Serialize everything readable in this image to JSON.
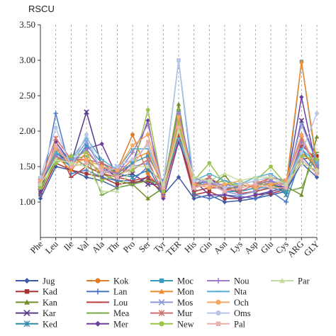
{
  "chart_data": {
    "type": "line",
    "ylabel": "RSCU",
    "xlabel": "",
    "title": "",
    "ylim": [
      0.5,
      3.5
    ],
    "yticks": [
      "1.00",
      "1.50",
      "2.00",
      "2.50",
      "3.00",
      "3.50"
    ],
    "ytick_values": [
      1.0,
      1.5,
      2.0,
      2.5,
      3.0,
      3.5
    ],
    "grid": "vertical dashed",
    "legend_position": "bottom",
    "categories": [
      "Phe",
      "Leu",
      "Ile",
      "Val",
      "Ala",
      "Thr",
      "Pro",
      "Ser",
      "Tyr",
      "TER",
      "His",
      "Gln",
      "Asn",
      "Lys",
      "Asp",
      "Glu",
      "Cys",
      "ARG",
      "GLY"
    ],
    "series": [
      {
        "name": "Jug",
        "color": "#3c5aa6",
        "marker": "diamond",
        "values": [
          1.05,
          1.5,
          1.45,
          1.35,
          1.3,
          1.2,
          1.25,
          1.35,
          1.1,
          1.35,
          1.05,
          1.1,
          1.0,
          1.02,
          1.05,
          1.1,
          1.15,
          1.55,
          1.35
        ]
      },
      {
        "name": "Kad",
        "color": "#a83232",
        "marker": "square",
        "values": [
          1.1,
          1.55,
          1.45,
          1.4,
          1.35,
          1.25,
          1.28,
          1.3,
          1.15,
          1.9,
          1.1,
          1.15,
          1.05,
          1.05,
          1.1,
          1.12,
          1.18,
          1.6,
          1.65
        ]
      },
      {
        "name": "Kan",
        "color": "#6f8f2a",
        "marker": "triangle",
        "values": [
          1.15,
          1.6,
          1.65,
          1.5,
          1.4,
          1.3,
          1.25,
          1.05,
          1.2,
          2.38,
          1.15,
          1.2,
          1.38,
          1.1,
          1.15,
          1.2,
          1.22,
          1.1,
          1.92
        ]
      },
      {
        "name": "Kar",
        "color": "#5b3a8a",
        "marker": "x",
        "values": [
          1.2,
          1.7,
          1.55,
          2.27,
          1.5,
          1.35,
          1.4,
          1.25,
          1.25,
          2.05,
          1.2,
          1.35,
          1.15,
          1.15,
          1.2,
          1.25,
          1.2,
          2.15,
          1.55
        ]
      },
      {
        "name": "Ked",
        "color": "#2f8aa8",
        "marker": "star",
        "values": [
          1.25,
          1.65,
          1.5,
          1.55,
          1.45,
          1.4,
          1.35,
          1.45,
          1.3,
          2.0,
          1.25,
          1.3,
          1.2,
          1.2,
          1.25,
          1.3,
          1.1,
          1.75,
          1.45
        ]
      },
      {
        "name": "Kok",
        "color": "#e07b28",
        "marker": "circle",
        "values": [
          1.3,
          1.75,
          1.6,
          1.6,
          1.4,
          1.45,
          1.95,
          1.4,
          1.15,
          2.15,
          1.2,
          1.25,
          1.15,
          1.25,
          1.2,
          1.35,
          1.25,
          1.7,
          1.5
        ]
      },
      {
        "name": "Lan",
        "color": "#4a78c8",
        "marker": "plus",
        "values": [
          1.1,
          2.25,
          1.4,
          1.45,
          1.35,
          1.3,
          1.3,
          1.5,
          1.1,
          2.1,
          1.1,
          1.05,
          1.1,
          1.08,
          1.05,
          1.15,
          1.0,
          1.65,
          1.4
        ]
      },
      {
        "name": "Lou",
        "color": "#b84040",
        "marker": "dash",
        "values": [
          1.2,
          1.8,
          1.35,
          1.5,
          1.4,
          1.35,
          1.3,
          1.35,
          1.2,
          1.95,
          1.15,
          1.2,
          1.2,
          1.12,
          1.15,
          1.2,
          1.2,
          1.8,
          1.6
        ]
      },
      {
        "name": "Mea",
        "color": "#7aa84a",
        "marker": "dash",
        "values": [
          1.25,
          1.6,
          1.6,
          1.65,
          1.1,
          1.2,
          1.25,
          1.3,
          1.25,
          2.3,
          1.25,
          1.25,
          1.3,
          1.2,
          1.25,
          1.25,
          1.15,
          1.2,
          1.7
        ]
      },
      {
        "name": "Mer",
        "color": "#6a3f9e",
        "marker": "diamond",
        "values": [
          1.15,
          1.85,
          1.55,
          1.75,
          1.82,
          1.35,
          1.55,
          2.15,
          1.05,
          1.85,
          1.3,
          1.1,
          1.1,
          1.05,
          1.1,
          1.15,
          1.2,
          2.48,
          1.45
        ]
      },
      {
        "name": "Moc",
        "color": "#3a9ac0",
        "marker": "square",
        "values": [
          1.3,
          1.7,
          1.5,
          1.8,
          1.55,
          1.4,
          1.55,
          1.65,
          1.25,
          3.0,
          1.2,
          1.25,
          1.15,
          1.15,
          1.2,
          1.2,
          1.15,
          2.98,
          1.5
        ]
      },
      {
        "name": "Mon",
        "color": "#f08c30",
        "marker": "triangle",
        "values": [
          1.35,
          1.65,
          1.45,
          1.7,
          1.5,
          1.4,
          1.6,
          1.7,
          1.2,
          2.2,
          1.25,
          1.25,
          1.2,
          1.25,
          1.3,
          1.25,
          1.25,
          2.98,
          1.55
        ]
      },
      {
        "name": "Mos",
        "color": "#8a9ad8",
        "marker": "x",
        "values": [
          1.25,
          1.8,
          1.55,
          1.85,
          1.45,
          1.5,
          1.5,
          1.55,
          1.15,
          2.25,
          1.2,
          1.3,
          1.15,
          1.1,
          1.15,
          1.3,
          1.25,
          2.1,
          1.55
        ]
      },
      {
        "name": "Mur",
        "color": "#d07070",
        "marker": "star",
        "values": [
          1.3,
          1.9,
          1.6,
          1.6,
          1.55,
          1.45,
          1.45,
          1.6,
          1.1,
          2.05,
          1.25,
          1.35,
          1.2,
          1.15,
          1.25,
          1.35,
          1.3,
          1.9,
          1.45
        ]
      },
      {
        "name": "New",
        "color": "#9ac44a",
        "marker": "circle",
        "values": [
          1.2,
          1.55,
          1.65,
          1.7,
          1.3,
          1.4,
          1.45,
          2.3,
          1.15,
          2.1,
          1.3,
          1.55,
          1.25,
          1.25,
          1.3,
          1.5,
          1.25,
          1.65,
          1.6
        ]
      },
      {
        "name": "Nou",
        "color": "#a07cc8",
        "marker": "plus",
        "values": [
          1.3,
          1.65,
          1.55,
          1.75,
          1.45,
          1.4,
          1.7,
          2.1,
          1.2,
          2.25,
          1.35,
          1.25,
          1.25,
          1.2,
          1.25,
          1.3,
          1.2,
          1.85,
          1.5
        ]
      },
      {
        "name": "Nta",
        "color": "#5ab0d0",
        "marker": "dash",
        "values": [
          1.35,
          1.7,
          1.6,
          1.9,
          1.6,
          1.45,
          1.75,
          1.75,
          1.25,
          1.9,
          1.3,
          1.4,
          1.3,
          1.25,
          1.35,
          1.4,
          1.25,
          1.75,
          1.55
        ]
      },
      {
        "name": "Och",
        "color": "#f4a860",
        "marker": "circle",
        "values": [
          1.3,
          1.75,
          1.55,
          1.6,
          1.5,
          1.45,
          1.8,
          1.95,
          1.2,
          2.2,
          1.25,
          1.2,
          1.25,
          1.3,
          1.2,
          1.25,
          1.3,
          1.95,
          1.45
        ]
      },
      {
        "name": "Oms",
        "color": "#b8c4e8",
        "marker": "circle",
        "values": [
          1.35,
          2.05,
          1.5,
          1.95,
          1.4,
          1.5,
          1.6,
          1.8,
          1.25,
          3.0,
          1.3,
          1.3,
          1.2,
          1.25,
          1.3,
          1.35,
          1.25,
          1.7,
          2.25
        ]
      },
      {
        "name": "Pal",
        "color": "#e8b0a8",
        "marker": "square",
        "values": [
          1.25,
          1.8,
          1.5,
          1.55,
          1.45,
          1.35,
          1.5,
          1.85,
          1.2,
          2.05,
          1.2,
          1.25,
          1.15,
          1.2,
          1.25,
          1.2,
          1.2,
          1.6,
          1.4
        ]
      },
      {
        "name": "Par",
        "color": "#c4dca0",
        "marker": "triangle",
        "values": [
          1.25,
          1.6,
          1.55,
          1.5,
          1.15,
          1.15,
          1.5,
          1.5,
          1.25,
          2.0,
          1.35,
          1.3,
          1.4,
          1.3,
          1.35,
          1.35,
          1.25,
          1.55,
          1.45
        ]
      }
    ]
  }
}
